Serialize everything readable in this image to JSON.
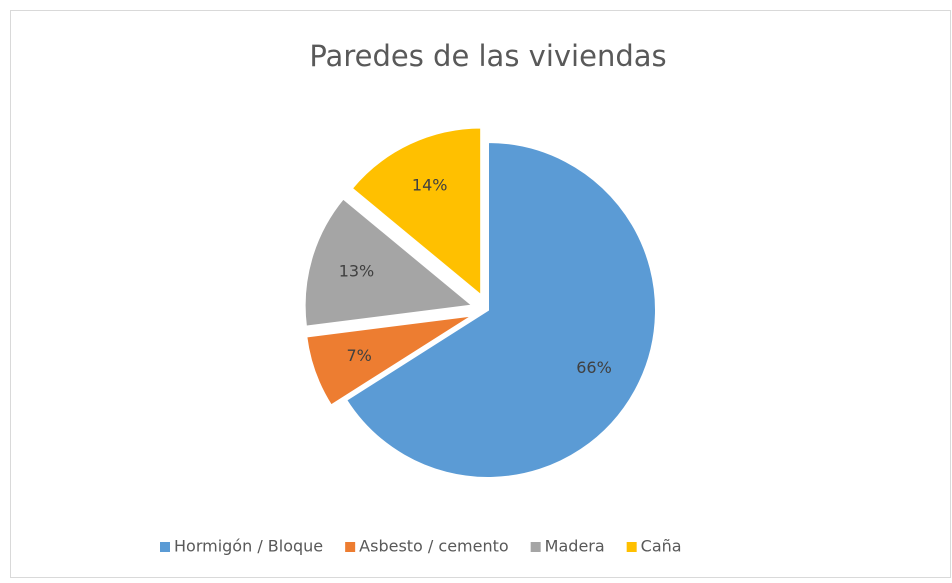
{
  "chart_data": {
    "type": "pie",
    "title": "Paredes de las viviendas",
    "categories": [
      "Hormigón / Bloque",
      "Asbesto / cemento",
      "Madera",
      "Caña"
    ],
    "values": [
      66,
      7,
      13,
      14
    ],
    "value_labels": [
      "66%",
      "7%",
      "13%",
      "14%"
    ],
    "colors": [
      "#5b9bd5",
      "#ed7d31",
      "#a5a5a5",
      "#ffc000"
    ],
    "legend": "bottom"
  }
}
